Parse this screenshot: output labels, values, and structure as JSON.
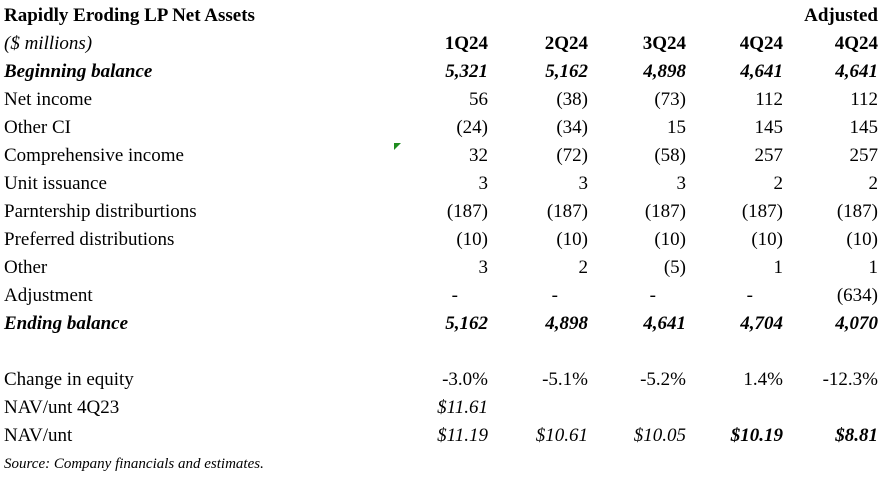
{
  "title": "Rapidly Eroding LP Net Assets",
  "adjusted_header": "Adjusted",
  "units": "($ millions)",
  "columns": [
    "1Q24",
    "2Q24",
    "3Q24",
    "4Q24",
    "4Q24"
  ],
  "rows": [
    {
      "label": "Beginning balance",
      "values": [
        "5,321",
        "5,162",
        "4,898",
        "4,641",
        "4,641"
      ]
    },
    {
      "label": "Net income",
      "values": [
        "56",
        "(38)",
        "(73)",
        "112",
        "112"
      ]
    },
    {
      "label": "Other CI",
      "values": [
        "(24)",
        "(34)",
        "15",
        "145",
        "145"
      ]
    },
    {
      "label": "Comprehensive income",
      "values": [
        "32",
        "(72)",
        "(58)",
        "257",
        "257"
      ]
    },
    {
      "label": "Unit issuance",
      "values": [
        "3",
        "3",
        "3",
        "2",
        "2"
      ]
    },
    {
      "label": "Parntership distriburtions",
      "values": [
        "(187)",
        "(187)",
        "(187)",
        "(187)",
        "(187)"
      ]
    },
    {
      "label": "Preferred distributions",
      "values": [
        "(10)",
        "(10)",
        "(10)",
        "(10)",
        "(10)"
      ]
    },
    {
      "label": "Other",
      "values": [
        "3",
        "2",
        "(5)",
        "1",
        "1"
      ]
    },
    {
      "label": "Adjustment",
      "values": [
        "-",
        "-",
        "-",
        "-",
        "(634)"
      ]
    },
    {
      "label": "Ending balance",
      "values": [
        "5,162",
        "4,898",
        "4,641",
        "4,704",
        "4,070"
      ]
    }
  ],
  "change_in_equity": {
    "label": "Change in equity",
    "values": [
      "-3.0%",
      "-5.1%",
      "-5.2%",
      "1.4%",
      "-12.3%"
    ]
  },
  "nav_4q23": {
    "label": "NAV/unt 4Q23",
    "value": "$11.61"
  },
  "nav": {
    "label": "NAV/unt",
    "values": [
      "$11.19",
      "$10.61",
      "$10.05",
      "$10.19",
      "$8.81"
    ]
  },
  "source": "Source:  Company financials and estimates."
}
